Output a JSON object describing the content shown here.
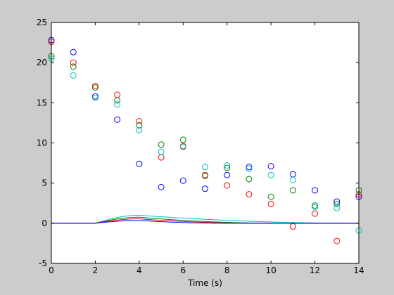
{
  "chart_data": {
    "type": "scatter",
    "title": "",
    "xlabel": "Time (s)",
    "ylabel": "",
    "xlim": [
      0,
      14
    ],
    "ylim": [
      -5,
      25
    ],
    "xticks": [
      0,
      2,
      4,
      6,
      8,
      10,
      12,
      14
    ],
    "yticks": [
      -5,
      0,
      5,
      10,
      15,
      20,
      25
    ],
    "xtick_labels": [
      "0",
      "2",
      "4",
      "6",
      "8",
      "10",
      "12",
      "14"
    ],
    "ytick_labels": [
      "-5",
      "0",
      "5",
      "10",
      "15",
      "20",
      "25"
    ],
    "grid": false,
    "legend": "none",
    "background": "#cccccc",
    "plot_background": "#ffffff",
    "series": [
      {
        "color": "#0000ff",
        "marker": "circle",
        "x": [
          0,
          1,
          2,
          3,
          4,
          5,
          6,
          7,
          8,
          9,
          10,
          11,
          12,
          13,
          14
        ],
        "y": [
          22.8,
          21.3,
          15.8,
          12.9,
          7.4,
          4.5,
          5.3,
          4.3,
          6.0,
          7.0,
          7.1,
          6.1,
          4.1,
          2.7,
          3.3
        ]
      },
      {
        "color": "#ff0000",
        "marker": "circle",
        "x": [
          0,
          1,
          2,
          3,
          4,
          5,
          6,
          7,
          8,
          9,
          10,
          11,
          12,
          13,
          14
        ],
        "y": [
          22.6,
          20.0,
          17.1,
          16.0,
          12.7,
          8.2,
          9.6,
          6.0,
          4.7,
          3.6,
          2.4,
          -0.4,
          1.2,
          -2.2,
          3.6
        ]
      },
      {
        "color": "#008000",
        "marker": "circle",
        "x": [
          0,
          1,
          2,
          3,
          4,
          5,
          6,
          7,
          8,
          9,
          10,
          11,
          12,
          13,
          14
        ],
        "y": [
          20.8,
          19.5,
          16.9,
          15.3,
          12.2,
          9.8,
          10.4,
          5.9,
          6.9,
          5.5,
          3.3,
          4.1,
          2.2,
          2.4,
          4.1
        ]
      },
      {
        "color": "#00bfbf",
        "marker": "circle",
        "x": [
          0,
          1,
          2,
          3,
          4,
          5,
          6,
          7,
          8,
          9,
          10,
          11,
          12,
          13,
          14
        ],
        "y": [
          20.5,
          18.4,
          15.6,
          14.8,
          11.6,
          8.9,
          9.5,
          7.0,
          7.2,
          6.8,
          6.0,
          5.4,
          2.0,
          1.9,
          -0.9
        ]
      }
    ],
    "curves": [
      {
        "color": "#0000ff",
        "start": 2.0,
        "peak_x": 4.0,
        "peak_y": 0.35,
        "end": 8.0
      },
      {
        "color": "#ff0000",
        "start": 2.0,
        "peak_x": 4.0,
        "peak_y": 0.55,
        "end": 9.5
      },
      {
        "color": "#008000",
        "start": 2.0,
        "peak_x": 4.0,
        "peak_y": 0.75,
        "end": 10.5
      },
      {
        "color": "#00bfbf",
        "start": 2.0,
        "peak_x": 4.0,
        "peak_y": 1.0,
        "end": 14.0
      }
    ]
  }
}
